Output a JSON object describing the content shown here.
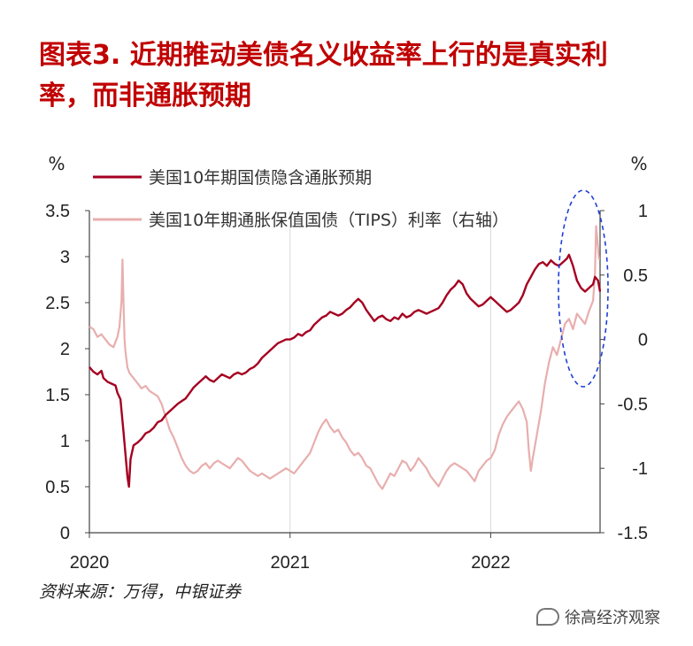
{
  "title": "图表3. 近期推动美债名义收益率上行的是真实利率，而非通胀预期",
  "source": "资料来源：万得，中银证券",
  "watermark": "徐高经济观察",
  "chart_data": {
    "type": "line",
    "y_left_unit": "%",
    "y_right_unit": "%",
    "x_ticks": [
      "2020",
      "2021",
      "2022"
    ],
    "ylim_left": [
      0,
      3.5
    ],
    "ylim_right": [
      -1.5,
      1
    ],
    "y_left_ticks": [
      "0",
      "0.5",
      "1",
      "1.5",
      "2",
      "2.5",
      "3",
      "3.5"
    ],
    "y_right_ticks": [
      "-1.5",
      "-1",
      "-0.5",
      "0",
      "0.5",
      "1"
    ],
    "grid": "vertical",
    "legend": "top-left",
    "series": [
      {
        "name": "美国10年期国债隐含通胀预期",
        "axis": "left",
        "color": "#a50021",
        "points": [
          [
            0.0,
            1.8
          ],
          [
            0.02,
            1.75
          ],
          [
            0.04,
            1.72
          ],
          [
            0.06,
            1.76
          ],
          [
            0.07,
            1.68
          ],
          [
            0.09,
            1.64
          ],
          [
            0.11,
            1.62
          ],
          [
            0.13,
            1.6
          ],
          [
            0.14,
            1.52
          ],
          [
            0.155,
            1.45
          ],
          [
            0.17,
            1.1
          ],
          [
            0.18,
            0.85
          ],
          [
            0.19,
            0.6
          ],
          [
            0.197,
            0.5
          ],
          [
            0.205,
            0.8
          ],
          [
            0.22,
            0.95
          ],
          [
            0.24,
            0.98
          ],
          [
            0.26,
            1.02
          ],
          [
            0.28,
            1.08
          ],
          [
            0.3,
            1.1
          ],
          [
            0.32,
            1.14
          ],
          [
            0.34,
            1.2
          ],
          [
            0.36,
            1.22
          ],
          [
            0.38,
            1.28
          ],
          [
            0.4,
            1.32
          ],
          [
            0.42,
            1.36
          ],
          [
            0.44,
            1.4
          ],
          [
            0.46,
            1.43
          ],
          [
            0.48,
            1.46
          ],
          [
            0.5,
            1.52
          ],
          [
            0.52,
            1.58
          ],
          [
            0.54,
            1.62
          ],
          [
            0.56,
            1.66
          ],
          [
            0.58,
            1.7
          ],
          [
            0.6,
            1.66
          ],
          [
            0.62,
            1.64
          ],
          [
            0.64,
            1.68
          ],
          [
            0.66,
            1.72
          ],
          [
            0.68,
            1.7
          ],
          [
            0.7,
            1.68
          ],
          [
            0.72,
            1.72
          ],
          [
            0.74,
            1.74
          ],
          [
            0.76,
            1.72
          ],
          [
            0.78,
            1.74
          ],
          [
            0.8,
            1.78
          ],
          [
            0.82,
            1.8
          ],
          [
            0.84,
            1.84
          ],
          [
            0.86,
            1.9
          ],
          [
            0.88,
            1.94
          ],
          [
            0.9,
            1.98
          ],
          [
            0.92,
            2.02
          ],
          [
            0.94,
            2.06
          ],
          [
            0.96,
            2.08
          ],
          [
            0.98,
            2.1
          ],
          [
            1.0,
            2.1
          ],
          [
            1.02,
            2.12
          ],
          [
            1.04,
            2.16
          ],
          [
            1.06,
            2.14
          ],
          [
            1.08,
            2.18
          ],
          [
            1.1,
            2.2
          ],
          [
            1.12,
            2.26
          ],
          [
            1.14,
            2.3
          ],
          [
            1.16,
            2.34
          ],
          [
            1.18,
            2.36
          ],
          [
            1.2,
            2.4
          ],
          [
            1.22,
            2.38
          ],
          [
            1.24,
            2.36
          ],
          [
            1.26,
            2.38
          ],
          [
            1.28,
            2.42
          ],
          [
            1.3,
            2.45
          ],
          [
            1.32,
            2.5
          ],
          [
            1.34,
            2.54
          ],
          [
            1.36,
            2.5
          ],
          [
            1.38,
            2.42
          ],
          [
            1.4,
            2.36
          ],
          [
            1.42,
            2.3
          ],
          [
            1.44,
            2.34
          ],
          [
            1.46,
            2.36
          ],
          [
            1.48,
            2.32
          ],
          [
            1.5,
            2.3
          ],
          [
            1.52,
            2.34
          ],
          [
            1.54,
            2.32
          ],
          [
            1.56,
            2.38
          ],
          [
            1.58,
            2.34
          ],
          [
            1.6,
            2.36
          ],
          [
            1.62,
            2.4
          ],
          [
            1.64,
            2.42
          ],
          [
            1.66,
            2.4
          ],
          [
            1.68,
            2.38
          ],
          [
            1.7,
            2.4
          ],
          [
            1.72,
            2.42
          ],
          [
            1.74,
            2.44
          ],
          [
            1.76,
            2.5
          ],
          [
            1.78,
            2.58
          ],
          [
            1.8,
            2.64
          ],
          [
            1.82,
            2.68
          ],
          [
            1.84,
            2.74
          ],
          [
            1.86,
            2.7
          ],
          [
            1.88,
            2.6
          ],
          [
            1.9,
            2.54
          ],
          [
            1.92,
            2.5
          ],
          [
            1.94,
            2.46
          ],
          [
            1.96,
            2.48
          ],
          [
            1.98,
            2.52
          ],
          [
            2.0,
            2.56
          ],
          [
            2.02,
            2.52
          ],
          [
            2.04,
            2.48
          ],
          [
            2.06,
            2.44
          ],
          [
            2.08,
            2.4
          ],
          [
            2.1,
            2.42
          ],
          [
            2.12,
            2.46
          ],
          [
            2.14,
            2.5
          ],
          [
            2.16,
            2.58
          ],
          [
            2.18,
            2.7
          ],
          [
            2.2,
            2.78
          ],
          [
            2.22,
            2.86
          ],
          [
            2.24,
            2.92
          ],
          [
            2.26,
            2.94
          ],
          [
            2.28,
            2.9
          ],
          [
            2.3,
            2.96
          ],
          [
            2.32,
            2.92
          ],
          [
            2.34,
            2.9
          ],
          [
            2.36,
            2.94
          ],
          [
            2.38,
            2.98
          ],
          [
            2.39,
            3.02
          ],
          [
            2.41,
            2.9
          ],
          [
            2.43,
            2.74
          ],
          [
            2.45,
            2.66
          ],
          [
            2.47,
            2.62
          ],
          [
            2.49,
            2.66
          ],
          [
            2.51,
            2.7
          ],
          [
            2.52,
            2.78
          ],
          [
            2.535,
            2.74
          ],
          [
            2.545,
            2.62
          ]
        ]
      },
      {
        "name": "美国10年期通胀保值国债（TIPS）利率（右轴）",
        "axis": "right",
        "color": "#e8aeae",
        "points": [
          [
            0.0,
            0.1
          ],
          [
            0.02,
            0.08
          ],
          [
            0.04,
            0.02
          ],
          [
            0.06,
            0.04
          ],
          [
            0.08,
            0.0
          ],
          [
            0.1,
            -0.04
          ],
          [
            0.12,
            -0.06
          ],
          [
            0.14,
            0.02
          ],
          [
            0.15,
            0.1
          ],
          [
            0.16,
            0.3
          ],
          [
            0.165,
            0.62
          ],
          [
            0.17,
            0.3
          ],
          [
            0.175,
            0.0
          ],
          [
            0.18,
            -0.1
          ],
          [
            0.19,
            -0.22
          ],
          [
            0.2,
            -0.26
          ],
          [
            0.22,
            -0.3
          ],
          [
            0.24,
            -0.34
          ],
          [
            0.26,
            -0.38
          ],
          [
            0.28,
            -0.36
          ],
          [
            0.3,
            -0.4
          ],
          [
            0.32,
            -0.42
          ],
          [
            0.34,
            -0.44
          ],
          [
            0.36,
            -0.5
          ],
          [
            0.38,
            -0.6
          ],
          [
            0.4,
            -0.7
          ],
          [
            0.42,
            -0.76
          ],
          [
            0.44,
            -0.84
          ],
          [
            0.46,
            -0.92
          ],
          [
            0.48,
            -0.98
          ],
          [
            0.5,
            -1.02
          ],
          [
            0.52,
            -1.04
          ],
          [
            0.54,
            -1.02
          ],
          [
            0.56,
            -0.98
          ],
          [
            0.58,
            -0.96
          ],
          [
            0.6,
            -1.0
          ],
          [
            0.62,
            -0.96
          ],
          [
            0.64,
            -0.94
          ],
          [
            0.66,
            -0.96
          ],
          [
            0.68,
            -0.98
          ],
          [
            0.7,
            -1.0
          ],
          [
            0.72,
            -0.96
          ],
          [
            0.74,
            -0.92
          ],
          [
            0.76,
            -0.94
          ],
          [
            0.78,
            -0.98
          ],
          [
            0.8,
            -1.02
          ],
          [
            0.82,
            -1.04
          ],
          [
            0.84,
            -1.06
          ],
          [
            0.86,
            -1.04
          ],
          [
            0.88,
            -1.06
          ],
          [
            0.9,
            -1.08
          ],
          [
            0.92,
            -1.06
          ],
          [
            0.94,
            -1.04
          ],
          [
            0.96,
            -1.02
          ],
          [
            0.98,
            -1.0
          ],
          [
            1.0,
            -1.02
          ],
          [
            1.02,
            -1.04
          ],
          [
            1.04,
            -1.0
          ],
          [
            1.06,
            -0.96
          ],
          [
            1.08,
            -0.92
          ],
          [
            1.1,
            -0.88
          ],
          [
            1.12,
            -0.8
          ],
          [
            1.14,
            -0.72
          ],
          [
            1.16,
            -0.66
          ],
          [
            1.18,
            -0.62
          ],
          [
            1.2,
            -0.68
          ],
          [
            1.22,
            -0.72
          ],
          [
            1.24,
            -0.7
          ],
          [
            1.26,
            -0.76
          ],
          [
            1.28,
            -0.8
          ],
          [
            1.3,
            -0.86
          ],
          [
            1.32,
            -0.9
          ],
          [
            1.34,
            -0.88
          ],
          [
            1.36,
            -0.92
          ],
          [
            1.38,
            -0.98
          ],
          [
            1.4,
            -1.0
          ],
          [
            1.42,
            -1.06
          ],
          [
            1.44,
            -1.12
          ],
          [
            1.46,
            -1.16
          ],
          [
            1.48,
            -1.1
          ],
          [
            1.5,
            -1.04
          ],
          [
            1.52,
            -1.06
          ],
          [
            1.54,
            -1.0
          ],
          [
            1.56,
            -0.94
          ],
          [
            1.58,
            -0.96
          ],
          [
            1.6,
            -1.02
          ],
          [
            1.62,
            -0.98
          ],
          [
            1.64,
            -0.92
          ],
          [
            1.66,
            -0.96
          ],
          [
            1.68,
            -1.0
          ],
          [
            1.7,
            -1.06
          ],
          [
            1.72,
            -1.1
          ],
          [
            1.74,
            -1.14
          ],
          [
            1.76,
            -1.08
          ],
          [
            1.78,
            -1.02
          ],
          [
            1.8,
            -0.98
          ],
          [
            1.82,
            -0.96
          ],
          [
            1.84,
            -0.98
          ],
          [
            1.86,
            -1.0
          ],
          [
            1.88,
            -1.02
          ],
          [
            1.9,
            -1.06
          ],
          [
            1.92,
            -1.1
          ],
          [
            1.94,
            -1.02
          ],
          [
            1.96,
            -0.98
          ],
          [
            1.98,
            -0.94
          ],
          [
            2.0,
            -0.92
          ],
          [
            2.02,
            -0.86
          ],
          [
            2.04,
            -0.74
          ],
          [
            2.06,
            -0.66
          ],
          [
            2.08,
            -0.6
          ],
          [
            2.1,
            -0.56
          ],
          [
            2.12,
            -0.52
          ],
          [
            2.14,
            -0.48
          ],
          [
            2.16,
            -0.54
          ],
          [
            2.18,
            -0.64
          ],
          [
            2.19,
            -0.86
          ],
          [
            2.2,
            -1.02
          ],
          [
            2.21,
            -0.92
          ],
          [
            2.23,
            -0.74
          ],
          [
            2.25,
            -0.56
          ],
          [
            2.27,
            -0.34
          ],
          [
            2.29,
            -0.18
          ],
          [
            2.31,
            -0.06
          ],
          [
            2.33,
            -0.12
          ],
          [
            2.35,
            0.0
          ],
          [
            2.37,
            0.12
          ],
          [
            2.39,
            0.16
          ],
          [
            2.41,
            0.08
          ],
          [
            2.43,
            0.2
          ],
          [
            2.45,
            0.16
          ],
          [
            2.47,
            0.12
          ],
          [
            2.49,
            0.22
          ],
          [
            2.51,
            0.3
          ],
          [
            2.52,
            0.52
          ],
          [
            2.525,
            0.88
          ],
          [
            2.53,
            0.8
          ],
          [
            2.54,
            0.62
          ]
        ]
      }
    ]
  }
}
